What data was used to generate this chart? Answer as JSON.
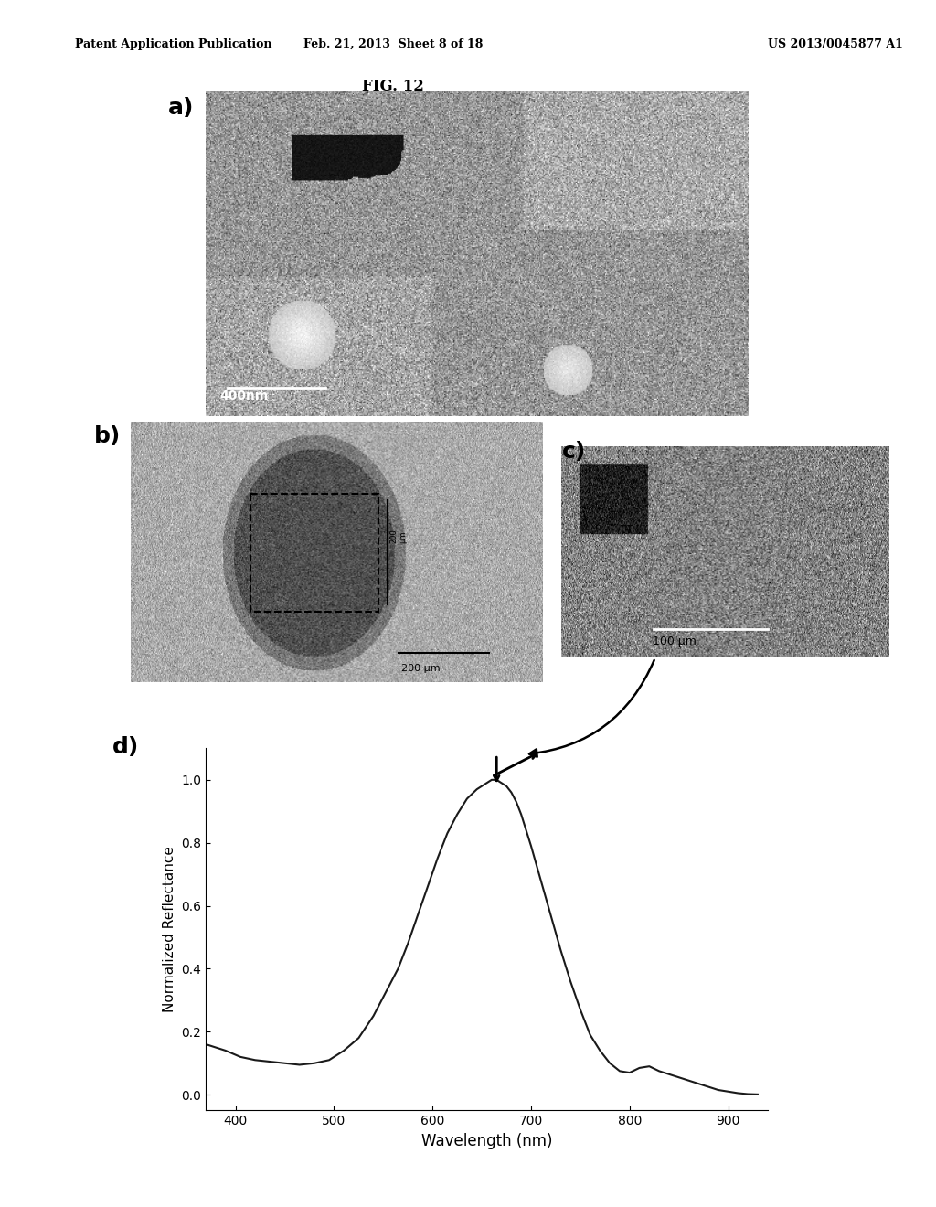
{
  "title": "FIG. 12",
  "header_left": "Patent Application Publication",
  "header_center": "Feb. 21, 2013  Sheet 8 of 18",
  "header_right": "US 2013/0045877 A1",
  "label_a": "a)",
  "label_b": "b)",
  "label_c": "c)",
  "label_d": "d)",
  "scalebar_a": "400nm",
  "scalebar_b": "200 μm",
  "scalebar_c": "100 μm",
  "xlabel": "Wavelength (nm)",
  "ylabel": "Normalized Reflectance",
  "xticks": [
    400,
    500,
    600,
    700,
    800,
    900
  ],
  "yticks": [
    0.0,
    0.2,
    0.4,
    0.6,
    0.8,
    1.0
  ],
  "xlim": [
    370,
    940
  ],
  "ylim": [
    -0.05,
    1.1
  ],
  "spectrum_x": [
    370,
    390,
    405,
    420,
    435,
    450,
    465,
    480,
    495,
    510,
    525,
    540,
    555,
    565,
    575,
    585,
    595,
    605,
    615,
    625,
    635,
    645,
    655,
    660,
    665,
    670,
    675,
    680,
    685,
    690,
    695,
    700,
    710,
    720,
    730,
    740,
    750,
    760,
    770,
    780,
    790,
    800,
    810,
    820,
    830,
    840,
    850,
    860,
    870,
    880,
    890,
    900,
    910,
    920,
    930
  ],
  "spectrum_y": [
    0.16,
    0.14,
    0.12,
    0.11,
    0.105,
    0.1,
    0.095,
    0.1,
    0.11,
    0.14,
    0.18,
    0.25,
    0.34,
    0.4,
    0.48,
    0.57,
    0.66,
    0.75,
    0.83,
    0.89,
    0.94,
    0.97,
    0.99,
    1.0,
    1.0,
    0.99,
    0.98,
    0.96,
    0.93,
    0.89,
    0.84,
    0.79,
    0.68,
    0.57,
    0.46,
    0.36,
    0.27,
    0.19,
    0.14,
    0.1,
    0.075,
    0.07,
    0.085,
    0.09,
    0.075,
    0.065,
    0.055,
    0.045,
    0.035,
    0.025,
    0.015,
    0.01,
    0.005,
    0.002,
    0.001
  ],
  "background_color": "#ffffff",
  "line_color": "#1a1a1a"
}
